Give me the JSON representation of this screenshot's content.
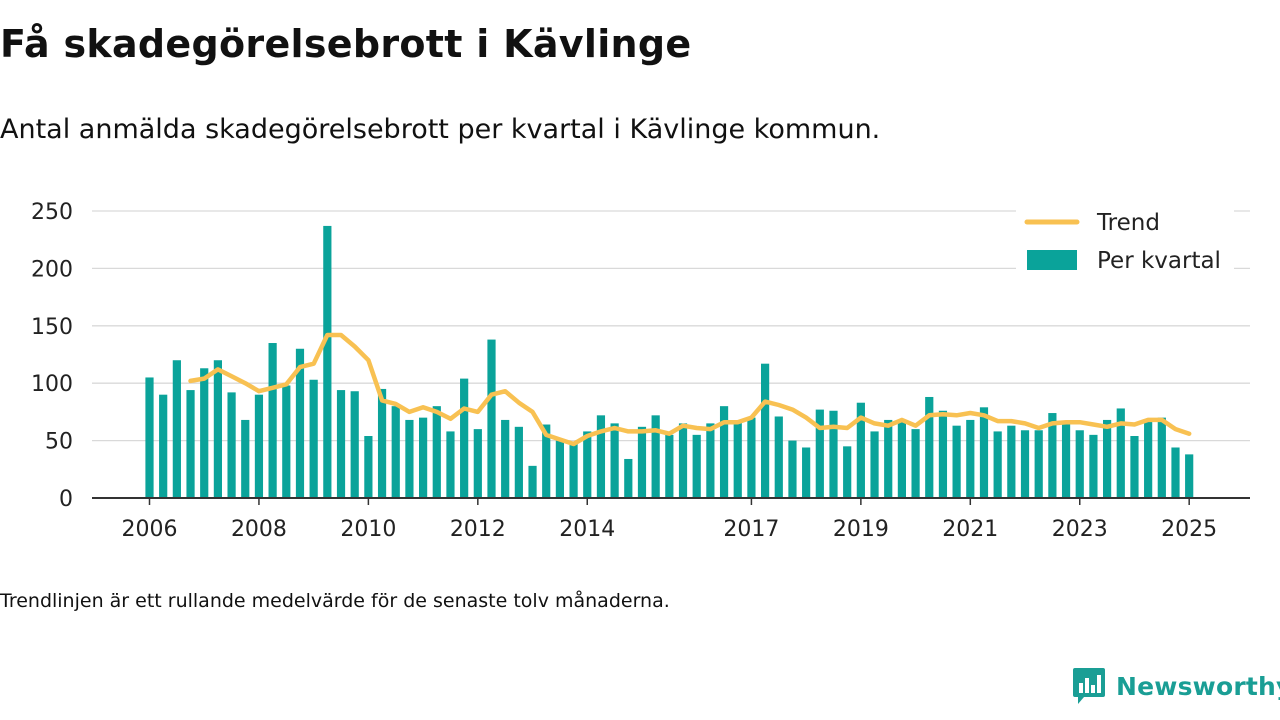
{
  "title": "Få skadegörelsebrott i Kävlinge",
  "subtitle": "Antal anmälda skadegörelsebrott per kvartal i Kävlinge kommun.",
  "footnote": "Trendlinjen är ett rullande medelvärde för de senaste tolv månaderna.",
  "brand": {
    "name": "Newsworthy",
    "logo_icon": "bar-chart-speech-bubble-icon",
    "color": "#1a9e95"
  },
  "colors": {
    "bars": "#0aa39a",
    "trend": "#f8c152",
    "grid": "#d9d9d9",
    "axis": "#333333"
  },
  "chart_data": {
    "type": "bar",
    "title": "Få skadegörelsebrott i Kävlinge",
    "xlabel": "",
    "ylabel": "",
    "ylim": [
      0,
      250
    ],
    "yticks": [
      0,
      50,
      100,
      150,
      200,
      250
    ],
    "xticks": [
      "2006",
      "2008",
      "2010",
      "2012",
      "2014",
      "2017",
      "2019",
      "2021",
      "2023",
      "2025"
    ],
    "legend_position": "top-right",
    "grid": true,
    "series": [
      {
        "name": "Per kvartal",
        "type": "bar",
        "values": [
          105,
          90,
          120,
          94,
          113,
          120,
          92,
          68,
          90,
          135,
          98,
          130,
          103,
          237,
          94,
          93,
          54,
          95,
          80,
          68,
          70,
          80,
          58,
          104,
          60,
          138,
          68,
          62,
          28,
          64,
          50,
          47,
          58,
          72,
          65,
          34,
          62,
          72,
          55,
          65,
          55,
          65,
          80,
          67,
          70,
          117,
          71,
          50,
          44,
          77,
          76,
          45,
          83,
          58,
          68,
          68,
          60,
          88,
          76,
          63,
          68,
          79,
          58,
          63,
          59,
          59,
          74,
          66,
          59,
          55,
          68,
          78,
          54,
          68,
          70,
          44,
          38
        ]
      },
      {
        "name": "Trend",
        "type": "line",
        "values": [
          null,
          null,
          null,
          102,
          104,
          112,
          106,
          100,
          93,
          96,
          99,
          114,
          117,
          142,
          142,
          132,
          120,
          85,
          82,
          75,
          79,
          75,
          69,
          78,
          75,
          90,
          93,
          83,
          75,
          55,
          51,
          47,
          54,
          58,
          61,
          58,
          58,
          59,
          56,
          63,
          61,
          60,
          66,
          66,
          70,
          84,
          81,
          77,
          70,
          61,
          62,
          61,
          70,
          65,
          63,
          68,
          63,
          72,
          73,
          72,
          74,
          72,
          67,
          67,
          65,
          61,
          65,
          66,
          66,
          64,
          62,
          65,
          64,
          68,
          68,
          60,
          56
        ]
      }
    ]
  }
}
